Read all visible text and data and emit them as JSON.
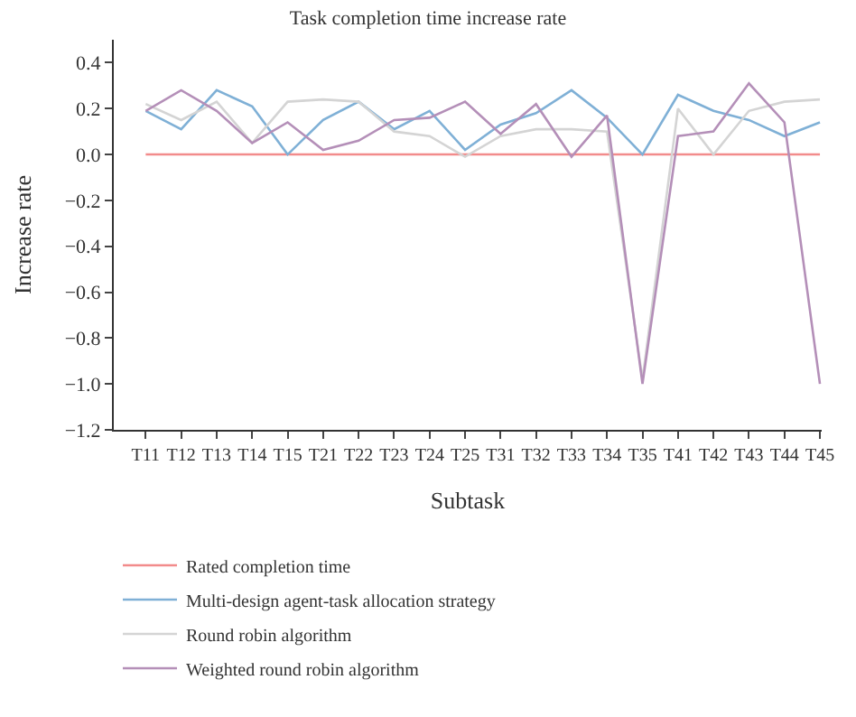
{
  "chart_data": {
    "type": "line",
    "title": "Task completion time increase rate",
    "xlabel": "Subtask",
    "ylabel": "Increase rate",
    "categories": [
      "T11",
      "T12",
      "T13",
      "T14",
      "T15",
      "T21",
      "T22",
      "T23",
      "T24",
      "T25",
      "T31",
      "T32",
      "T33",
      "T34",
      "T35",
      "T41",
      "T42",
      "T43",
      "T44",
      "T45"
    ],
    "series": [
      {
        "name": "Rated completion time",
        "color": "#f28b8b",
        "values": [
          0,
          0,
          0,
          0,
          0,
          0,
          0,
          0,
          0,
          0,
          0,
          0,
          0,
          0,
          0,
          0,
          0,
          0,
          0,
          0
        ]
      },
      {
        "name": "Multi-design agent-task allocation strategy",
        "color": "#7fb0d6",
        "values": [
          0.19,
          0.11,
          0.28,
          0.21,
          0.0,
          0.15,
          0.23,
          0.11,
          0.19,
          0.02,
          0.13,
          0.18,
          0.28,
          0.16,
          0.0,
          0.26,
          0.19,
          0.15,
          0.08,
          0.14
        ]
      },
      {
        "name": "Round robin algorithm",
        "color": "#d4d4d4",
        "values": [
          0.22,
          0.15,
          0.23,
          0.05,
          0.23,
          0.24,
          0.23,
          0.1,
          0.08,
          -0.01,
          0.08,
          0.11,
          0.11,
          0.1,
          -0.98,
          0.2,
          0.0,
          0.19,
          0.23,
          0.24
        ]
      },
      {
        "name": "Weighted round robin algorithm",
        "color": "#b48fb8",
        "values": [
          0.19,
          0.28,
          0.19,
          0.05,
          0.14,
          0.02,
          0.06,
          0.15,
          0.16,
          0.23,
          0.09,
          0.22,
          -0.01,
          0.17,
          -1.0,
          0.08,
          0.1,
          0.31,
          0.14,
          -1.0
        ]
      }
    ],
    "ylim": [
      -1.2,
      0.5
    ],
    "yticks": [
      {
        "value": -1.2,
        "label": "−1.2"
      },
      {
        "value": -1.0,
        "label": "−1.0"
      },
      {
        "value": -0.8,
        "label": "−0.8"
      },
      {
        "value": -0.6,
        "label": "−0.6"
      },
      {
        "value": -0.4,
        "label": "−0.4"
      },
      {
        "value": -0.2,
        "label": "−0.2"
      },
      {
        "value": 0.0,
        "label": "0.0"
      },
      {
        "value": 0.2,
        "label": "0.2"
      },
      {
        "value": 0.4,
        "label": "0.4"
      }
    ],
    "legend": "bottom",
    "marker": "none",
    "line_style": "solid"
  }
}
